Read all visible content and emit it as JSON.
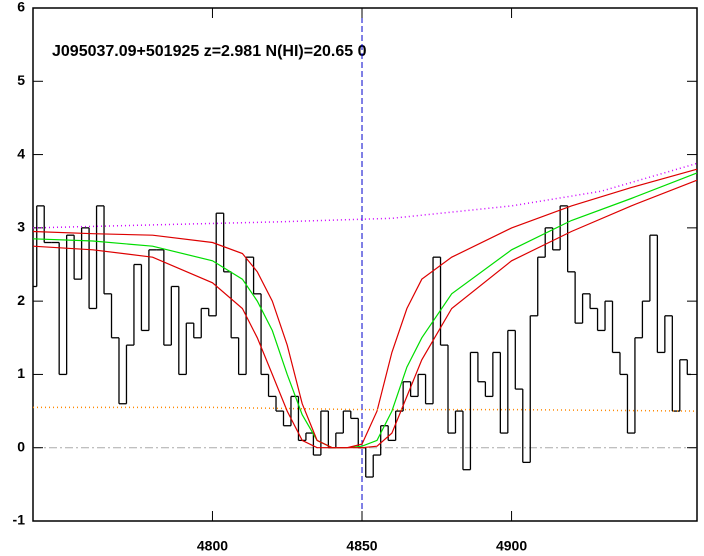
{
  "chart_data": {
    "type": "line",
    "title": "J095037.09+501925 z=2.981 N(HI)=20.65 0",
    "xlim": [
      4740,
      4962
    ],
    "ylim": [
      -1,
      6
    ],
    "xticks": [
      4800,
      4850,
      4900
    ],
    "yticks": [
      -1,
      0,
      1,
      2,
      3,
      4,
      5,
      6
    ],
    "hline": 0,
    "vline": 4850,
    "series": [
      {
        "style": "step",
        "color": "#000000",
        "x": [
          4740,
          4742.5,
          4745,
          4747.5,
          4750,
          4752.5,
          4755,
          4757.5,
          4760,
          4762.5,
          4765,
          4767.5,
          4770,
          4772.5,
          4775,
          4777.5,
          4780,
          4782.5,
          4785,
          4787.5,
          4790,
          4792.5,
          4795,
          4797.5,
          4800,
          4802.5,
          4805,
          4807.5,
          4810,
          4812.5,
          4815,
          4817.5,
          4820,
          4822.5,
          4825,
          4827.5,
          4830,
          4832.5,
          4835,
          4837.5,
          4840,
          4842.5,
          4845,
          4847.5,
          4850,
          4852.5,
          4855,
          4857.5,
          4860,
          4862.5,
          4865,
          4867.5,
          4870,
          4872.5,
          4875,
          4877.5,
          4880,
          4882.5,
          4885,
          4887.5,
          4890,
          4892.5,
          4895,
          4897.5,
          4900,
          4902.5,
          4905,
          4907.5,
          4910,
          4912.5,
          4915,
          4917.5,
          4920,
          4922.5,
          4925,
          4927.5,
          4930,
          4932.5,
          4935,
          4937.5,
          4940,
          4942.5,
          4945,
          4947.5,
          4950,
          4952.5,
          4955,
          4957.5,
          4960
        ],
        "values": [
          2.2,
          3.3,
          2.8,
          2.8,
          1.0,
          2.9,
          2.3,
          3.0,
          1.9,
          3.3,
          2.1,
          1.5,
          0.6,
          1.4,
          2.5,
          1.6,
          2.7,
          2.7,
          1.4,
          2.2,
          1.0,
          1.7,
          1.5,
          1.9,
          1.8,
          3.2,
          2.4,
          1.5,
          1.0,
          2.6,
          2.1,
          1.0,
          0.7,
          0.5,
          0.3,
          0.7,
          0.1,
          0.2,
          -0.1,
          0.5,
          0.0,
          0.2,
          0.5,
          0.4,
          0.0,
          -0.4,
          -0.1,
          0.3,
          0.1,
          0.5,
          0.9,
          0.7,
          1.0,
          0.6,
          2.6,
          1.4,
          0.2,
          0.5,
          -0.3,
          1.3,
          0.9,
          0.7,
          1.3,
          0.2,
          1.6,
          0.8,
          -0.2,
          1.8,
          2.6,
          3.0,
          2.7,
          3.3,
          2.4,
          1.7,
          2.1,
          1.9,
          1.6,
          2.0,
          1.3,
          1.0,
          0.2,
          1.5,
          2.0,
          2.9,
          1.3,
          1.8,
          0.5,
          1.2,
          1.0
        ]
      },
      {
        "style": "solid",
        "color": "#00dd00",
        "x": [
          4740,
          4760,
          4780,
          4800,
          4810,
          4815,
          4820,
          4825,
          4830,
          4835,
          4840,
          4845,
          4850,
          4855,
          4860,
          4865,
          4870,
          4880,
          4900,
          4920,
          4940,
          4962
        ],
        "values": [
          2.85,
          2.82,
          2.75,
          2.55,
          2.3,
          2.0,
          1.6,
          1.0,
          0.45,
          0.1,
          0.0,
          0.0,
          0.02,
          0.1,
          0.5,
          1.1,
          1.5,
          2.1,
          2.7,
          3.1,
          3.4,
          3.75
        ]
      },
      {
        "style": "solid",
        "color": "#dd0000",
        "x": [
          4740,
          4760,
          4780,
          4800,
          4810,
          4815,
          4820,
          4825,
          4830,
          4835,
          4840,
          4845,
          4850,
          4855,
          4860,
          4865,
          4870,
          4880,
          4900,
          4920,
          4940,
          4962
        ],
        "values": [
          2.95,
          2.92,
          2.9,
          2.8,
          2.65,
          2.4,
          2.0,
          1.4,
          0.6,
          0.1,
          0.0,
          0.0,
          0.05,
          0.5,
          1.3,
          1.9,
          2.3,
          2.6,
          3.0,
          3.3,
          3.55,
          3.8
        ]
      },
      {
        "style": "solid",
        "color": "#dd0000",
        "x": [
          4740,
          4760,
          4780,
          4800,
          4810,
          4815,
          4820,
          4825,
          4830,
          4835,
          4840,
          4845,
          4850,
          4855,
          4860,
          4865,
          4870,
          4880,
          4900,
          4920,
          4940,
          4962
        ],
        "values": [
          2.75,
          2.7,
          2.6,
          2.25,
          1.9,
          1.5,
          1.0,
          0.5,
          0.1,
          0.0,
          0.0,
          0.0,
          0.0,
          0.02,
          0.2,
          0.7,
          1.2,
          1.9,
          2.55,
          2.95,
          3.3,
          3.65
        ]
      },
      {
        "style": "dotted",
        "color": "#cc00ff",
        "x": [
          4740,
          4780,
          4820,
          4860,
          4900,
          4930,
          4962
        ],
        "values": [
          3.0,
          3.04,
          3.08,
          3.13,
          3.3,
          3.5,
          3.88
        ]
      },
      {
        "style": "dotted",
        "color": "#ff8800",
        "x": [
          4740,
          4800,
          4850,
          4900,
          4962
        ],
        "values": [
          0.55,
          0.55,
          0.52,
          0.52,
          0.5
        ]
      }
    ]
  }
}
